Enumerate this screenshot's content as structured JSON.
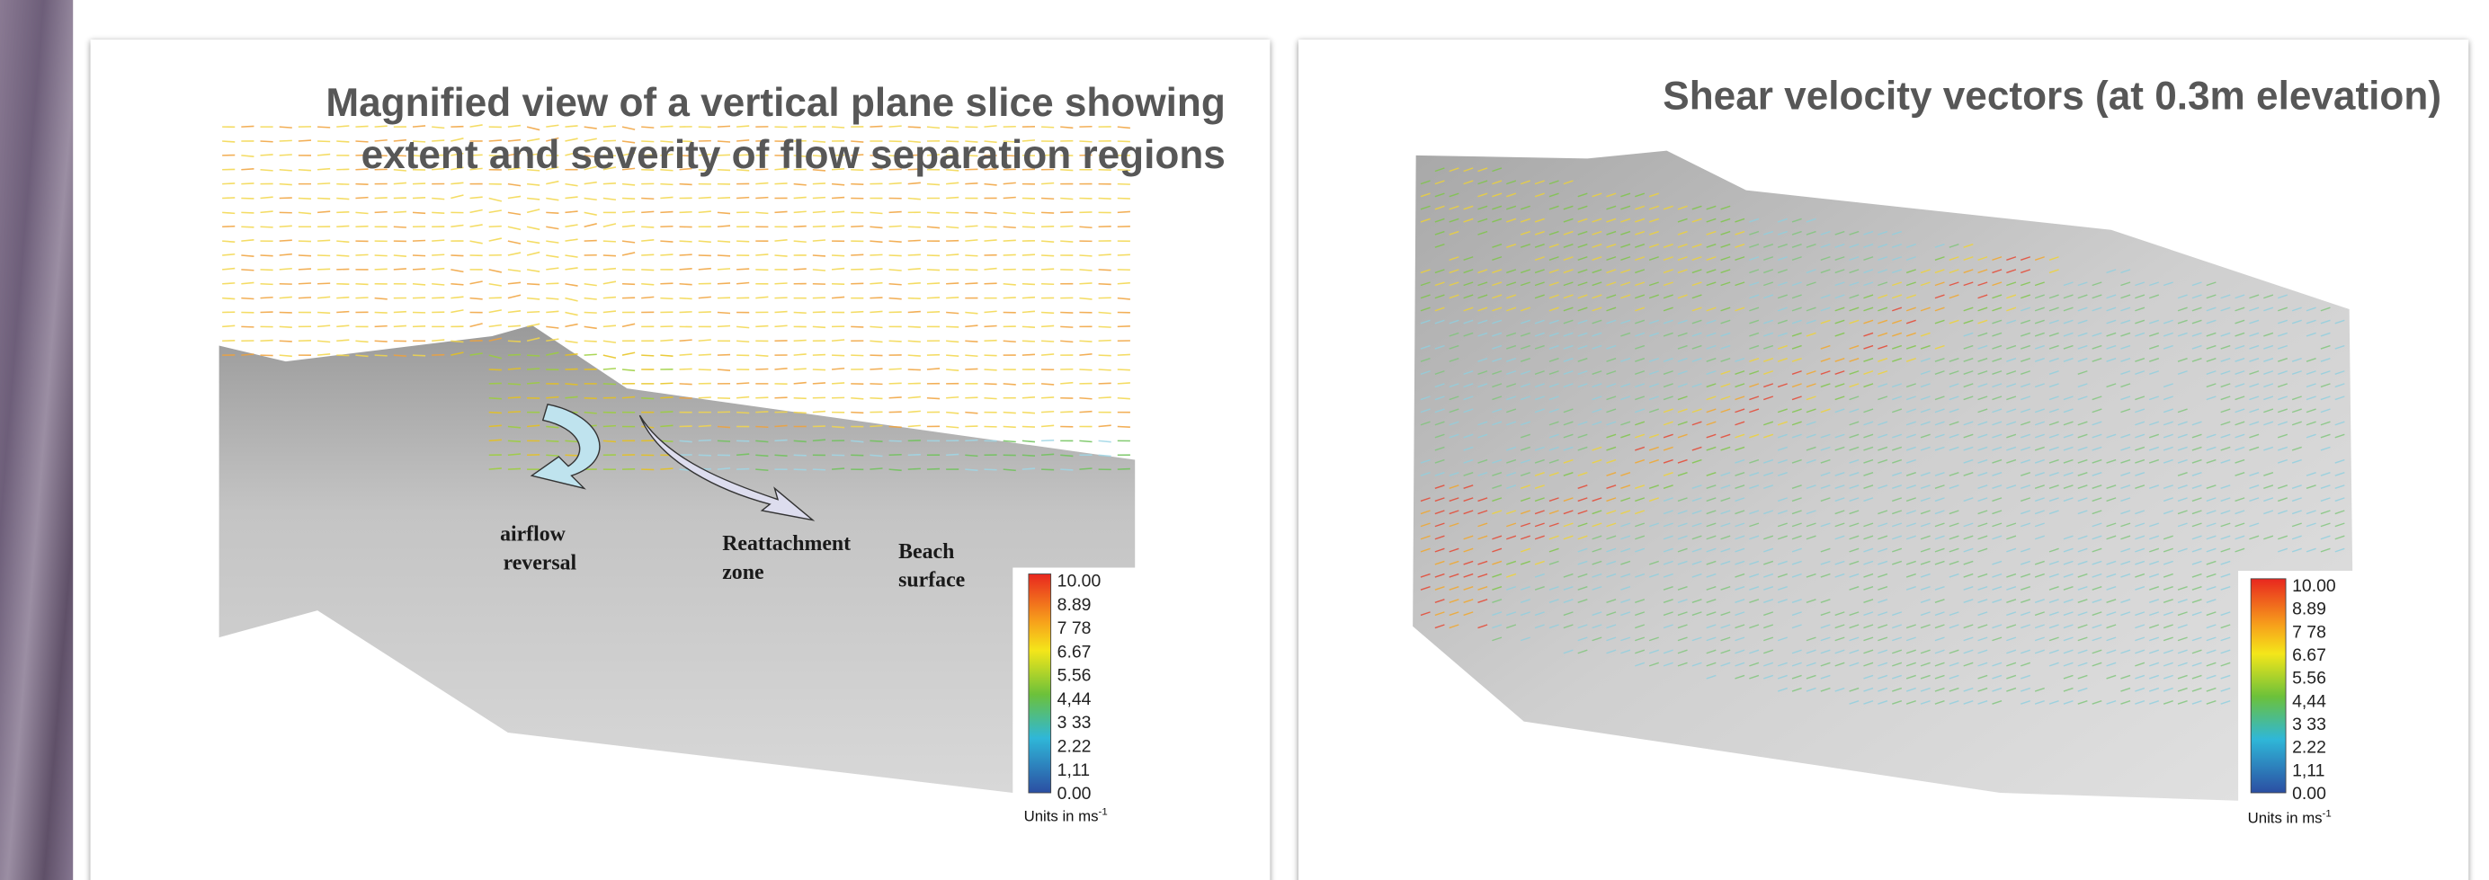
{
  "left_panel": {
    "title_lines": [
      "Magnified view of a vertical plane slice showing",
      "extent and severity of flow separation regions"
    ],
    "annotations": [
      [
        "airflow",
        "reversal"
      ],
      [
        "Reattachment",
        "zone"
      ],
      [
        "Beach",
        "surface"
      ]
    ],
    "colorbar_labels": [
      "10.00",
      "8.89",
      "7 78",
      "6.67",
      "5.56",
      "4,44",
      "3 33",
      "2.22",
      "1,11",
      "0.00"
    ],
    "units": {
      "text": "Units in ms",
      "superscript": "-1"
    }
  },
  "right_panel": {
    "title": "Shear velocity vectors (at 0.3m elevation)",
    "colorbar_labels": [
      "10.00",
      "8.89",
      "7 78",
      "6.67",
      "5.56",
      "4,44",
      "3 33",
      "2.22",
      "1,11",
      "0.00"
    ],
    "units": {
      "text": "Units in ms",
      "superscript": "-1"
    }
  }
}
